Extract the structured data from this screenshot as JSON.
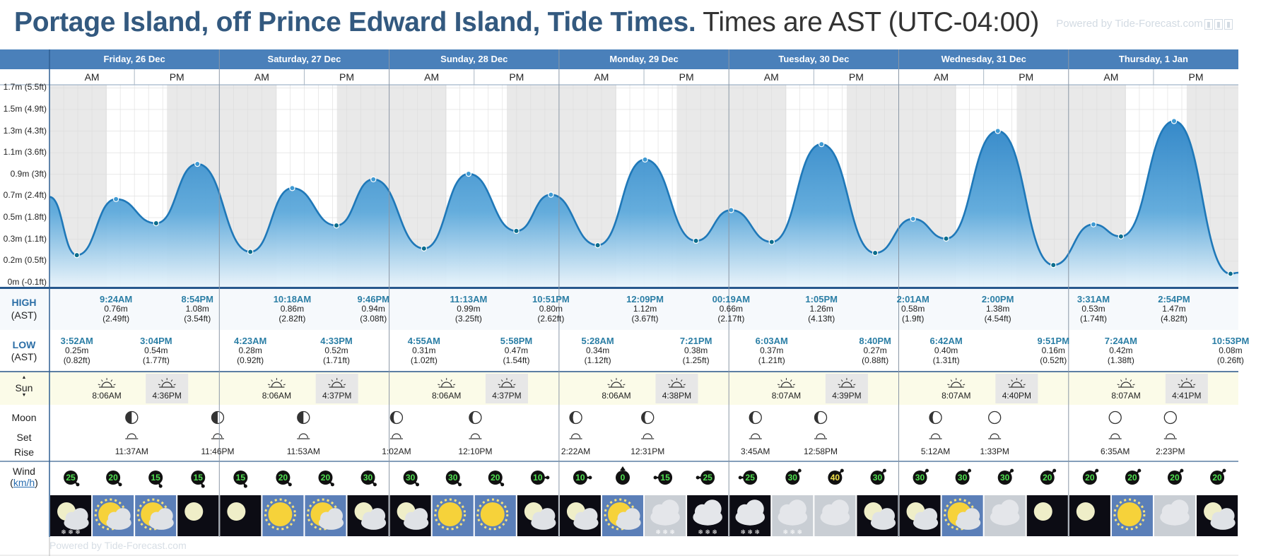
{
  "title": {
    "location": "Portage Island, off Prince Edward Island, Tide Times.",
    "timezone": "Times are AST (UTC-04:00)"
  },
  "powered_by": "Powered by Tide-Forecast.com",
  "powered_by_bottom": "Powered by Tide-Forecast.com",
  "rows": {
    "high": "HIGH",
    "high_tz": "(AST)",
    "low": "LOW",
    "low_tz": "(AST)",
    "sun": "Sun",
    "moon": "Moon",
    "moon_set": "Set",
    "moon_rise": "Rise",
    "wind": "Wind",
    "wind_unit": "km/h"
  },
  "chart_data": {
    "type": "area",
    "title": "Portage Island, off Prince Edward Island, Tide Times.",
    "xlabel": "",
    "ylabel": "",
    "days": [
      {
        "label": "Friday, 26 Dec",
        "am": "AM",
        "pm": "PM"
      },
      {
        "label": "Saturday, 27 Dec",
        "am": "AM",
        "pm": "PM"
      },
      {
        "label": "Sunday, 28 Dec",
        "am": "AM",
        "pm": "PM"
      },
      {
        "label": "Monday, 29 Dec",
        "am": "AM",
        "pm": "PM"
      },
      {
        "label": "Tuesday, 30 Dec",
        "am": "AM",
        "pm": "PM"
      },
      {
        "label": "Wednesday, 31 Dec",
        "am": "AM",
        "pm": "PM"
      },
      {
        "label": "Thursday, 1 Jan",
        "am": "AM",
        "pm": "PM"
      }
    ],
    "y_ticks": [
      "0m (-0.1ft)",
      "0.2m (0.5ft)",
      "0.3m (1.1ft)",
      "0.5m (1.8ft)",
      "0.7m (2.4ft)",
      "0.9m (3ft)",
      "1.1m (3.6ft)",
      "1.3m (4.3ft)",
      "1.5m (4.9ft)",
      "1.7m (5.5ft)"
    ],
    "ylim": [
      -0.03,
      1.77
    ],
    "start_level_m": 0.78,
    "tides": [
      {
        "day": 0,
        "hour": 3.867,
        "type": "low",
        "time": "3:52AM",
        "m": 0.25,
        "m_label": "0.25m",
        "ft": "(0.82ft)"
      },
      {
        "day": 0,
        "hour": 9.4,
        "type": "high",
        "time": "9:24AM",
        "m": 0.76,
        "m_label": "0.76m",
        "ft": "(2.49ft)"
      },
      {
        "day": 0,
        "hour": 15.067,
        "type": "low",
        "time": "3:04PM",
        "m": 0.54,
        "m_label": "0.54m",
        "ft": "(1.77ft)"
      },
      {
        "day": 0,
        "hour": 20.9,
        "type": "high",
        "time": "8:54PM",
        "m": 1.08,
        "m_label": "1.08m",
        "ft": "(3.54ft)"
      },
      {
        "day": 1,
        "hour": 4.383,
        "type": "low",
        "time": "4:23AM",
        "m": 0.28,
        "m_label": "0.28m",
        "ft": "(0.92ft)"
      },
      {
        "day": 1,
        "hour": 10.3,
        "type": "high",
        "time": "10:18AM",
        "m": 0.86,
        "m_label": "0.86m",
        "ft": "(2.82ft)"
      },
      {
        "day": 1,
        "hour": 16.55,
        "type": "low",
        "time": "4:33PM",
        "m": 0.52,
        "m_label": "0.52m",
        "ft": "(1.71ft)"
      },
      {
        "day": 1,
        "hour": 21.767,
        "type": "high",
        "time": "9:46PM",
        "m": 0.94,
        "m_label": "0.94m",
        "ft": "(3.08ft)"
      },
      {
        "day": 2,
        "hour": 4.917,
        "type": "low",
        "time": "4:55AM",
        "m": 0.31,
        "m_label": "0.31m",
        "ft": "(1.02ft)"
      },
      {
        "day": 2,
        "hour": 11.217,
        "type": "high",
        "time": "11:13AM",
        "m": 0.99,
        "m_label": "0.99m",
        "ft": "(3.25ft)"
      },
      {
        "day": 2,
        "hour": 17.967,
        "type": "low",
        "time": "5:58PM",
        "m": 0.47,
        "m_label": "0.47m",
        "ft": "(1.54ft)"
      },
      {
        "day": 2,
        "hour": 22.85,
        "type": "high",
        "time": "10:51PM",
        "m": 0.8,
        "m_label": "0.80m",
        "ft": "(2.62ft)"
      },
      {
        "day": 3,
        "hour": 5.467,
        "type": "low",
        "time": "5:28AM",
        "m": 0.34,
        "m_label": "0.34m",
        "ft": "(1.12ft)"
      },
      {
        "day": 3,
        "hour": 12.15,
        "type": "high",
        "time": "12:09PM",
        "m": 1.12,
        "m_label": "1.12m",
        "ft": "(3.67ft)"
      },
      {
        "day": 3,
        "hour": 19.35,
        "type": "low",
        "time": "7:21PM",
        "m": 0.38,
        "m_label": "0.38m",
        "ft": "(1.25ft)"
      },
      {
        "day": 4,
        "hour": 0.317,
        "type": "high",
        "time": "00:19AM",
        "m": 0.66,
        "m_label": "0.66m",
        "ft": "(2.17ft)"
      },
      {
        "day": 4,
        "hour": 6.05,
        "type": "low",
        "time": "6:03AM",
        "m": 0.37,
        "m_label": "0.37m",
        "ft": "(1.21ft)"
      },
      {
        "day": 4,
        "hour": 13.083,
        "type": "high",
        "time": "1:05PM",
        "m": 1.26,
        "m_label": "1.26m",
        "ft": "(4.13ft)"
      },
      {
        "day": 4,
        "hour": 20.667,
        "type": "low",
        "time": "8:40PM",
        "m": 0.27,
        "m_label": "0.27m",
        "ft": "(0.88ft)"
      },
      {
        "day": 5,
        "hour": 2.017,
        "type": "high",
        "time": "2:01AM",
        "m": 0.58,
        "m_label": "0.58m",
        "ft": "(1.9ft)"
      },
      {
        "day": 5,
        "hour": 6.7,
        "type": "low",
        "time": "6:42AM",
        "m": 0.4,
        "m_label": "0.40m",
        "ft": "(1.31ft)"
      },
      {
        "day": 5,
        "hour": 14.0,
        "type": "high",
        "time": "2:00PM",
        "m": 1.38,
        "m_label": "1.38m",
        "ft": "(4.54ft)"
      },
      {
        "day": 5,
        "hour": 21.85,
        "type": "low",
        "time": "9:51PM",
        "m": 0.16,
        "m_label": "0.16m",
        "ft": "(0.52ft)"
      },
      {
        "day": 6,
        "hour": 3.517,
        "type": "high",
        "time": "3:31AM",
        "m": 0.53,
        "m_label": "0.53m",
        "ft": "(1.74ft)"
      },
      {
        "day": 6,
        "hour": 7.4,
        "type": "low",
        "time": "7:24AM",
        "m": 0.42,
        "m_label": "0.42m",
        "ft": "(1.38ft)"
      },
      {
        "day": 6,
        "hour": 14.9,
        "type": "high",
        "time": "2:54PM",
        "m": 1.47,
        "m_label": "1.47m",
        "ft": "(4.82ft)"
      },
      {
        "day": 6,
        "hour": 22.883,
        "type": "low",
        "time": "10:53PM",
        "m": 0.08,
        "m_label": "0.08m",
        "ft": "(0.26ft)"
      }
    ],
    "sun": [
      {
        "day": 0,
        "rise": "8:06AM",
        "set": "4:36PM",
        "rise_h": 8.1,
        "set_h": 16.6
      },
      {
        "day": 1,
        "rise": "8:06AM",
        "set": "4:37PM",
        "rise_h": 8.1,
        "set_h": 16.617
      },
      {
        "day": 2,
        "rise": "8:06AM",
        "set": "4:37PM",
        "rise_h": 8.1,
        "set_h": 16.617
      },
      {
        "day": 3,
        "rise": "8:06AM",
        "set": "4:38PM",
        "rise_h": 8.1,
        "set_h": 16.633
      },
      {
        "day": 4,
        "rise": "8:07AM",
        "set": "4:39PM",
        "rise_h": 8.117,
        "set_h": 16.65
      },
      {
        "day": 5,
        "rise": "8:07AM",
        "set": "4:40PM",
        "rise_h": 8.117,
        "set_h": 16.667
      },
      {
        "day": 6,
        "rise": "8:07AM",
        "set": "4:41PM",
        "rise_h": 8.117,
        "set_h": 16.683
      }
    ],
    "moon": [
      {
        "day": 0,
        "hour": 11.617,
        "event": "set",
        "time": "11:37AM",
        "phase": "first-quarter"
      },
      {
        "day": 0,
        "hour": 23.767,
        "event": "rise",
        "time": "11:46PM",
        "phase": "first-quarter"
      },
      {
        "day": 1,
        "hour": 11.883,
        "event": "set",
        "time": "11:53AM",
        "phase": "first-quarter"
      },
      {
        "day": 2,
        "hour": 1.033,
        "event": "rise",
        "time": "1:02AM",
        "phase": "waxing-gibbous"
      },
      {
        "day": 2,
        "hour": 12.167,
        "event": "set",
        "time": "12:10PM",
        "phase": "waxing-gibbous"
      },
      {
        "day": 3,
        "hour": 2.367,
        "event": "rise",
        "time": "2:22AM",
        "phase": "waxing-gibbous"
      },
      {
        "day": 3,
        "hour": 12.517,
        "event": "set",
        "time": "12:31PM",
        "phase": "waxing-gibbous"
      },
      {
        "day": 4,
        "hour": 3.75,
        "event": "rise",
        "time": "3:45AM",
        "phase": "waxing-gibbous"
      },
      {
        "day": 4,
        "hour": 12.967,
        "event": "set",
        "time": "12:58PM",
        "phase": "waxing-gibbous"
      },
      {
        "day": 5,
        "hour": 5.2,
        "event": "rise",
        "time": "5:12AM",
        "phase": "waxing-gibbous"
      },
      {
        "day": 5,
        "hour": 13.55,
        "event": "set",
        "time": "1:33PM",
        "phase": "full-moon"
      },
      {
        "day": 6,
        "hour": 6.583,
        "event": "rise",
        "time": "6:35AM",
        "phase": "full-moon"
      },
      {
        "day": 6,
        "hour": 14.383,
        "event": "set",
        "time": "2:23PM",
        "phase": "full-moon"
      }
    ],
    "wind": [
      {
        "speed": "25",
        "dir": 135,
        "hl": false
      },
      {
        "speed": "20",
        "dir": 135,
        "hl": false
      },
      {
        "speed": "15",
        "dir": 150,
        "hl": false
      },
      {
        "speed": "15",
        "dir": 150,
        "hl": false
      },
      {
        "speed": "15",
        "dir": 150,
        "hl": false
      },
      {
        "speed": "20",
        "dir": 135,
        "hl": false
      },
      {
        "speed": "20",
        "dir": 135,
        "hl": false
      },
      {
        "speed": "30",
        "dir": 135,
        "hl": false
      },
      {
        "speed": "30",
        "dir": 135,
        "hl": false
      },
      {
        "speed": "30",
        "dir": 135,
        "hl": false
      },
      {
        "speed": "20",
        "dir": 135,
        "hl": false
      },
      {
        "speed": "10",
        "dir": 90,
        "hl": false
      },
      {
        "speed": "10",
        "dir": 90,
        "hl": false
      },
      {
        "speed": "0",
        "dir": 0,
        "hl": false
      },
      {
        "speed": "15",
        "dir": 270,
        "hl": false
      },
      {
        "speed": "25",
        "dir": 270,
        "hl": false
      },
      {
        "speed": "25",
        "dir": 270,
        "hl": false
      },
      {
        "speed": "30",
        "dir": 45,
        "hl": false
      },
      {
        "speed": "40",
        "dir": 45,
        "hl": true
      },
      {
        "speed": "30",
        "dir": 45,
        "hl": false
      },
      {
        "speed": "30",
        "dir": 45,
        "hl": false
      },
      {
        "speed": "30",
        "dir": 45,
        "hl": false
      },
      {
        "speed": "30",
        "dir": 45,
        "hl": false
      },
      {
        "speed": "20",
        "dir": 45,
        "hl": false
      },
      {
        "speed": "20",
        "dir": 45,
        "hl": false
      },
      {
        "speed": "20",
        "dir": 45,
        "hl": false
      },
      {
        "speed": "20",
        "dir": 45,
        "hl": false
      },
      {
        "speed": "20",
        "dir": 45,
        "hl": false
      }
    ],
    "weather": [
      "night-cloud-snow",
      "partly-cloudy-day",
      "partly-cloudy-day",
      "clear-night",
      "clear-night",
      "sunny",
      "partly-cloudy-day",
      "cloudy-night",
      "night-cloud",
      "sunny",
      "sunny",
      "night-cloud",
      "night-cloud",
      "partly-cloudy-day",
      "cloudy-snow",
      "night-snow",
      "night-snow",
      "cloudy-snow",
      "cloudy",
      "cloudy-night",
      "cloudy-night",
      "partly-cloudy-day",
      "cloudy",
      "clear-night",
      "clear-night",
      "sunny",
      "cloudy",
      "cloudy-night"
    ],
    "grid": true
  }
}
